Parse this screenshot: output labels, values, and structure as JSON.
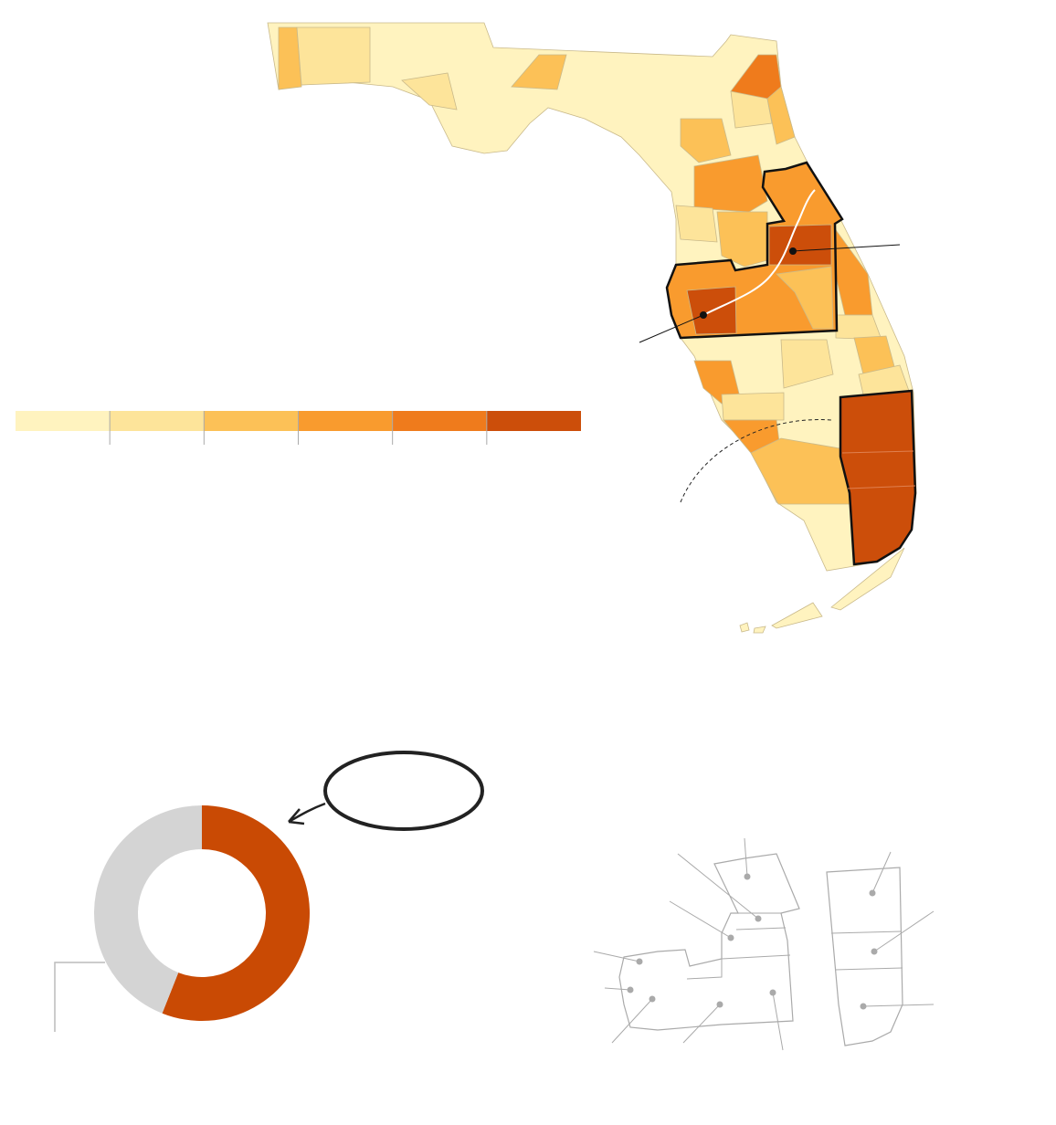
{
  "chart_data": {
    "type": "pie",
    "values": [
      56,
      44
    ],
    "colors": [
      "#c94a04",
      "#d4d4d4"
    ],
    "legend_colors": [
      "#fff3bf",
      "#fde49a",
      "#fcc157",
      "#f99b2e",
      "#ef7b1c",
      "#cc4e0a"
    ]
  }
}
